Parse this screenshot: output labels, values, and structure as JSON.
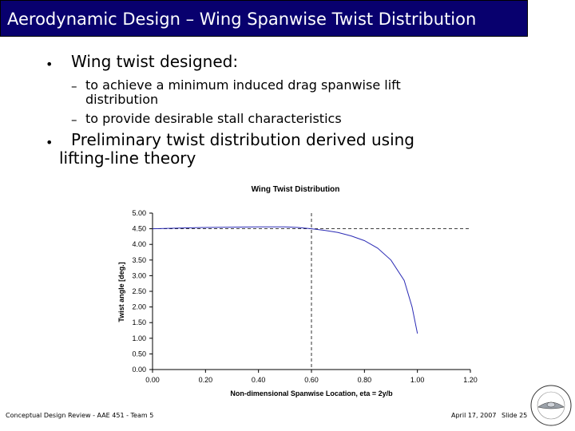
{
  "slide": {
    "title": "Aerodynamic Design – Wing Spanwise Twist Distribution",
    "bullets": [
      {
        "text": "Wing twist designed:",
        "sub": [
          {
            "line1": "to achieve a minimum induced drag spanwise lift",
            "line2": "distribution"
          },
          {
            "line1": "to provide desirable stall characteristics",
            "line2": ""
          }
        ]
      },
      {
        "text_line1": "Preliminary twist distribution derived using",
        "text_line2": "lifting-line theory"
      }
    ],
    "footer": {
      "left": "Conceptual Design Review - AAE 451 - Team 5",
      "date": "April 17, 2007",
      "slide": "Slide 25"
    }
  },
  "chart_data": {
    "type": "line",
    "title": "Wing Twist Distribution",
    "xlabel": "Non-dimensional Spanwise Location, eta = 2y/b",
    "ylabel": "Twist angle [deg.]",
    "xlim": [
      0,
      1.2
    ],
    "ylim": [
      0,
      5
    ],
    "x_ticks": [
      "0.00",
      "0.20",
      "0.40",
      "0.60",
      "0.80",
      "1.00",
      "1.20"
    ],
    "y_ticks": [
      "0.00",
      "0.50",
      "1.00",
      "1.50",
      "2.00",
      "2.50",
      "3.00",
      "3.50",
      "4.00",
      "4.50",
      "5.00"
    ],
    "grid": false,
    "legend": "none",
    "series": [
      {
        "x": [
          0.0,
          0.1,
          0.2,
          0.3,
          0.4,
          0.5,
          0.55,
          0.6,
          0.65,
          0.7,
          0.75,
          0.8,
          0.85,
          0.9,
          0.95,
          0.98,
          1.0
        ],
        "y": [
          4.5,
          4.52,
          4.54,
          4.55,
          4.56,
          4.56,
          4.54,
          4.5,
          4.45,
          4.38,
          4.27,
          4.12,
          3.88,
          3.5,
          2.85,
          2.0,
          1.15
        ],
        "color": "#2b2bb5"
      }
    ],
    "reference_lines": {
      "horizontal_y": 4.5,
      "vertical_x": 0.6
    }
  },
  "colors": {
    "title_bar": "#08006e",
    "title_text": "#ffffff",
    "series": "#2b2bb5"
  }
}
